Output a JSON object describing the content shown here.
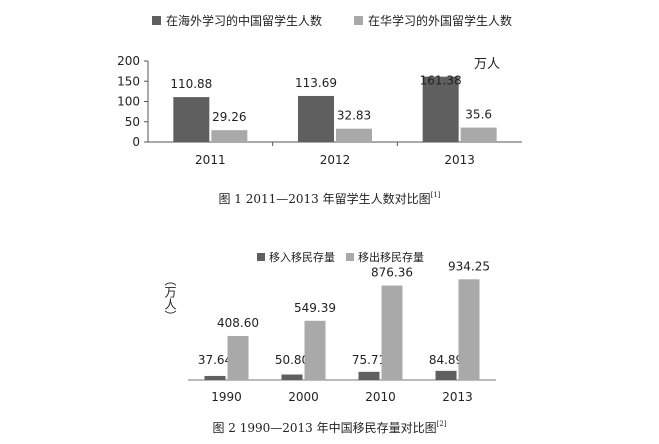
{
  "chart_data": [
    {
      "type": "bar",
      "title": "",
      "xlabel": "",
      "ylabel": "",
      "unit_annotation": "万人",
      "categories": [
        "2011",
        "2012",
        "2013"
      ],
      "ylim": [
        0,
        200
      ],
      "yticks": [
        0,
        50,
        100,
        150,
        200
      ],
      "grid": false,
      "legend_position": "top",
      "series": [
        {
          "name": "在海外学习的中国留学生人数",
          "values": [
            110.88,
            113.69,
            161.38
          ],
          "color": "#5f5f5f",
          "labels": [
            "110.88",
            "113.69",
            "161.38"
          ]
        },
        {
          "name": "在华学习的外国留学生人数",
          "values": [
            29.26,
            32.83,
            35.6
          ],
          "color": "#a9a9a9",
          "labels": [
            "29.26",
            "32.83",
            "35.6"
          ]
        }
      ]
    },
    {
      "type": "bar",
      "title": "",
      "xlabel": "",
      "ylabel": "（万人）",
      "categories": [
        "1990",
        "2000",
        "2010",
        "2013"
      ],
      "ylim": [
        0,
        1000
      ],
      "y_axis_visible": false,
      "grid": false,
      "legend_position": "top",
      "series": [
        {
          "name": "移入移民存量",
          "values": [
            37.64,
            50.8,
            75.71,
            84.89
          ],
          "color": "#5f5f5f",
          "labels": [
            "37.64",
            "50.80",
            "75.71",
            "84.89"
          ]
        },
        {
          "name": "移出移民存量",
          "values": [
            408.6,
            549.39,
            876.36,
            934.25
          ],
          "color": "#a9a9a9",
          "labels": [
            "408.60",
            "549.39",
            "876.36",
            "934.25"
          ]
        }
      ]
    }
  ],
  "captions": {
    "figure1": {
      "text": "图 1  2011—2013 年留学生人数对比图",
      "ref": "[1]"
    },
    "figure2": {
      "text": "图 2  1990—2013 年中国移民存量对比图",
      "ref": "[2]"
    }
  }
}
